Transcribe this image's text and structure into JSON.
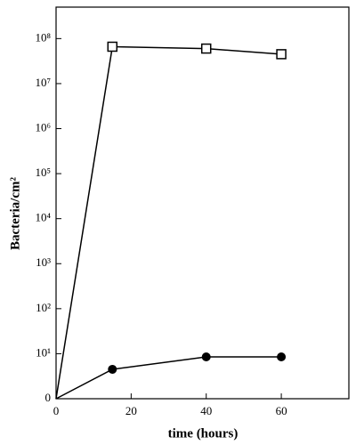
{
  "chart_data": {
    "type": "line",
    "x_label": "time (hours)",
    "y_label": "Bacteria/cm²",
    "log_y": true,
    "xlim": [
      0,
      78
    ],
    "xticks": [
      0,
      20,
      40,
      60
    ],
    "ylim": [
      1,
      500000000
    ],
    "yticks": [
      {
        "value": 1,
        "label": "0"
      },
      {
        "value": 10,
        "label": "10¹"
      },
      {
        "value": 100,
        "label": "10²"
      },
      {
        "value": 1000,
        "label": "10³"
      },
      {
        "value": 10000,
        "label": "10⁴"
      },
      {
        "value": 100000,
        "label": "10⁵"
      },
      {
        "value": 1000000,
        "label": "10⁶"
      },
      {
        "value": 10000000,
        "label": "10⁷"
      },
      {
        "value": 100000000,
        "label": "10⁸"
      }
    ],
    "series": [
      {
        "color": "#000000",
        "marker": "open-square",
        "x": [
          0,
          15,
          40,
          60
        ],
        "values": [
          1,
          66000000,
          60000000,
          45000000
        ]
      },
      {
        "color": "#000000",
        "marker": "filled-circle",
        "x": [
          0,
          15,
          40,
          60
        ],
        "values": [
          1,
          4.5,
          8.5,
          8.5
        ]
      }
    ]
  }
}
